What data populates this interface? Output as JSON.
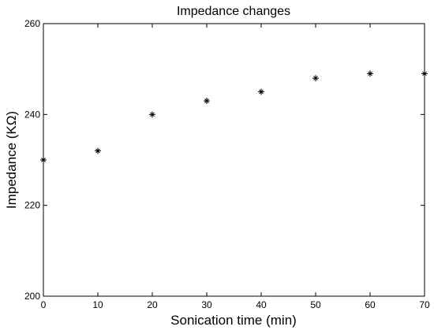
{
  "chart_data": {
    "type": "scatter",
    "title": "Impedance changes",
    "xlabel": "Sonication time (min)",
    "ylabel": "Impedance (KΩ)",
    "xlim": [
      0,
      70
    ],
    "ylim": [
      200,
      260
    ],
    "xticks": [
      0,
      10,
      20,
      30,
      40,
      50,
      60,
      70
    ],
    "yticks": [
      200,
      220,
      240,
      260
    ],
    "grid": false,
    "marker": "star",
    "color": "#000000",
    "series": [
      {
        "x": [
          0,
          10,
          20,
          30,
          40,
          50,
          60,
          70
        ],
        "y": [
          230,
          232,
          240,
          243,
          245,
          248,
          249,
          249
        ]
      }
    ]
  }
}
